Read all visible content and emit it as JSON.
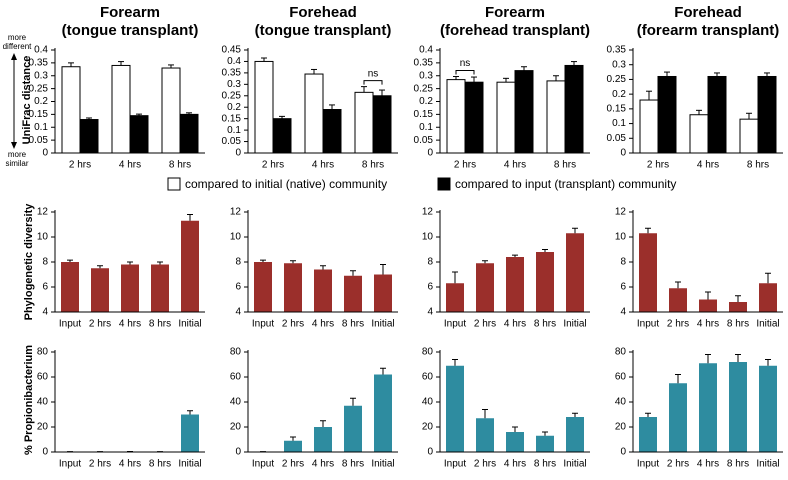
{
  "y_labels": [
    "UniFrac distance",
    "Phylogenetic diversity",
    "% Propionibacterium"
  ],
  "scale_notes": {
    "top": [
      "more",
      "different"
    ],
    "bottom": [
      "more",
      "similar"
    ]
  },
  "legend": [
    {
      "name": "compared to initial (native) community",
      "color": "#ffffff"
    },
    {
      "name": "compared to input (transplant) community",
      "color": "#000000"
    }
  ],
  "chart_data": [
    {
      "type": "grouped_bar",
      "title": "Forearm",
      "subtitle": "(tongue transplant)",
      "categories": [
        "2 hrs",
        "4 hrs",
        "8 hrs"
      ],
      "series": [
        {
          "values": [
            0.335,
            0.34,
            0.33
          ],
          "errors": [
            0.015,
            0.015,
            0.012
          ]
        },
        {
          "values": [
            0.13,
            0.145,
            0.15
          ],
          "errors": [
            0.006,
            0.006,
            0.006
          ]
        }
      ],
      "ylim": [
        0,
        0.4
      ],
      "yticks": [
        0,
        0.05,
        0.1,
        0.15,
        0.2,
        0.25,
        0.3,
        0.35,
        0.4
      ]
    },
    {
      "type": "grouped_bar",
      "title": "Forehead",
      "subtitle": "(tongue transplant)",
      "categories": [
        "2 hrs",
        "4 hrs",
        "8 hrs"
      ],
      "series": [
        {
          "values": [
            0.4,
            0.345,
            0.265
          ],
          "errors": [
            0.015,
            0.02,
            0.025
          ]
        },
        {
          "values": [
            0.15,
            0.19,
            0.25
          ],
          "errors": [
            0.01,
            0.02,
            0.025
          ]
        }
      ],
      "ylim": [
        0,
        0.45
      ],
      "yticks": [
        0,
        0.05,
        0.1,
        0.15,
        0.2,
        0.25,
        0.3,
        0.35,
        0.4,
        0.45
      ],
      "annotation": {
        "text": "ns",
        "category": "8 hrs"
      }
    },
    {
      "type": "grouped_bar",
      "title": "Forearm",
      "subtitle": "(forehead transplant)",
      "categories": [
        "2 hrs",
        "4 hrs",
        "8 hrs"
      ],
      "series": [
        {
          "values": [
            0.285,
            0.275,
            0.28
          ],
          "errors": [
            0.012,
            0.015,
            0.02
          ]
        },
        {
          "values": [
            0.275,
            0.32,
            0.34
          ],
          "errors": [
            0.02,
            0.015,
            0.015
          ]
        }
      ],
      "ylim": [
        0,
        0.4
      ],
      "yticks": [
        0,
        0.05,
        0.1,
        0.15,
        0.2,
        0.25,
        0.3,
        0.35,
        0.4
      ],
      "annotation": {
        "text": "ns",
        "category": "2 hrs"
      }
    },
    {
      "type": "grouped_bar",
      "title": "Forehead",
      "subtitle": "(forearm transplant)",
      "categories": [
        "2 hrs",
        "4 hrs",
        "8 hrs"
      ],
      "series": [
        {
          "values": [
            0.18,
            0.13,
            0.115
          ],
          "errors": [
            0.03,
            0.015,
            0.02
          ]
        },
        {
          "values": [
            0.26,
            0.26,
            0.26
          ],
          "errors": [
            0.015,
            0.012,
            0.012
          ]
        }
      ],
      "ylim": [
        0,
        0.35
      ],
      "yticks": [
        0,
        0.05,
        0.1,
        0.15,
        0.2,
        0.25,
        0.3,
        0.35
      ]
    },
    {
      "type": "bar",
      "categories": [
        "Input",
        "2 hrs",
        "4 hrs",
        "8 hrs",
        "Initial"
      ],
      "values": [
        8.0,
        7.5,
        7.8,
        7.8,
        11.3
      ],
      "errors": [
        0.15,
        0.2,
        0.2,
        0.2,
        0.5
      ],
      "color": "#9b2f2b",
      "ylim": [
        4,
        12
      ],
      "yticks": [
        4,
        6,
        8,
        10,
        12
      ]
    },
    {
      "type": "bar",
      "categories": [
        "Input",
        "2 hrs",
        "4 hrs",
        "8 hrs",
        "Initial"
      ],
      "values": [
        8.0,
        7.9,
        7.4,
        6.9,
        7.0
      ],
      "errors": [
        0.15,
        0.2,
        0.3,
        0.4,
        0.8
      ],
      "color": "#9b2f2b",
      "ylim": [
        4,
        12
      ],
      "yticks": [
        4,
        6,
        8,
        10,
        12
      ]
    },
    {
      "type": "bar",
      "categories": [
        "Input",
        "2 hrs",
        "4 hrs",
        "8 hrs",
        "Initial"
      ],
      "values": [
        6.3,
        7.9,
        8.4,
        8.8,
        10.3
      ],
      "errors": [
        0.9,
        0.2,
        0.15,
        0.2,
        0.4
      ],
      "color": "#9b2f2b",
      "ylim": [
        4,
        12
      ],
      "yticks": [
        4,
        6,
        8,
        10,
        12
      ]
    },
    {
      "type": "bar",
      "categories": [
        "Input",
        "2 hrs",
        "4 hrs",
        "8 hrs",
        "Initial"
      ],
      "values": [
        10.3,
        5.9,
        5.0,
        4.8,
        6.3
      ],
      "errors": [
        0.4,
        0.5,
        0.6,
        0.5,
        0.8
      ],
      "color": "#9b2f2b",
      "ylim": [
        4,
        12
      ],
      "yticks": [
        4,
        6,
        8,
        10,
        12
      ]
    },
    {
      "type": "bar",
      "categories": [
        "Input",
        "2 hrs",
        "4 hrs",
        "8 hrs",
        "Initial"
      ],
      "values": [
        0.2,
        0.2,
        0.3,
        0.2,
        30
      ],
      "errors": [
        0.1,
        0.1,
        0.1,
        0.1,
        3
      ],
      "color": "#2e8ca0",
      "ylim": [
        0,
        80
      ],
      "yticks": [
        0,
        20,
        40,
        60,
        80
      ]
    },
    {
      "type": "bar",
      "categories": [
        "Input",
        "2 hrs",
        "4 hrs",
        "8 hrs",
        "Initial"
      ],
      "values": [
        0.2,
        9,
        20,
        37,
        62
      ],
      "errors": [
        0.1,
        3,
        5,
        6,
        5
      ],
      "color": "#2e8ca0",
      "ylim": [
        0,
        80
      ],
      "yticks": [
        0,
        20,
        40,
        60,
        80
      ]
    },
    {
      "type": "bar",
      "categories": [
        "Input",
        "2 hrs",
        "4 hrs",
        "8 hrs",
        "Initial"
      ],
      "values": [
        69,
        27,
        16,
        13,
        28
      ],
      "errors": [
        5,
        7,
        4,
        3,
        3
      ],
      "color": "#2e8ca0",
      "ylim": [
        0,
        80
      ],
      "yticks": [
        0,
        20,
        40,
        60,
        80
      ]
    },
    {
      "type": "bar",
      "categories": [
        "Input",
        "2 hrs",
        "4 hrs",
        "8 hrs",
        "Initial"
      ],
      "values": [
        28,
        55,
        71,
        72,
        69
      ],
      "errors": [
        3,
        7,
        7,
        6,
        5
      ],
      "color": "#2e8ca0",
      "ylim": [
        0,
        80
      ],
      "yticks": [
        0,
        20,
        40,
        60,
        80
      ]
    }
  ]
}
